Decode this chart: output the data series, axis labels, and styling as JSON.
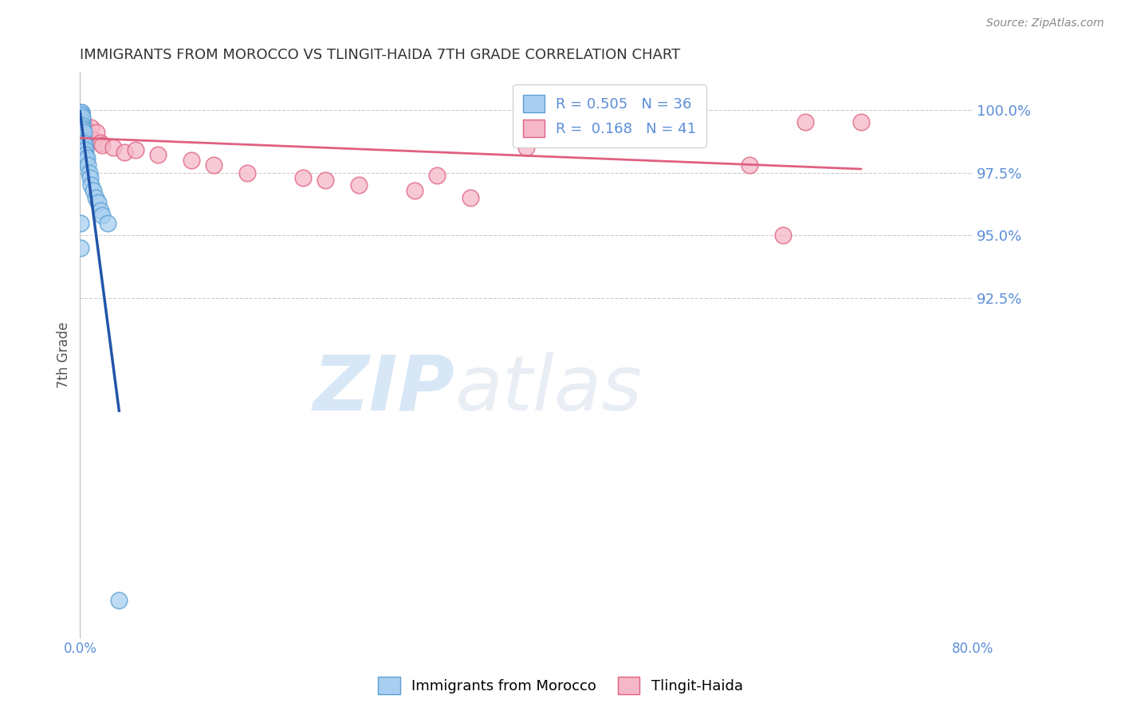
{
  "title": "IMMIGRANTS FROM MOROCCO VS TLINGIT-HAIDA 7TH GRADE CORRELATION CHART",
  "source": "Source: ZipAtlas.com",
  "ylabel": "7th Grade",
  "y_ticks": [
    92.5,
    95.0,
    97.5,
    100.0
  ],
  "y_tick_labels": [
    "92.5%",
    "95.0%",
    "97.5%",
    "100.0%"
  ],
  "x_min": 0.0,
  "x_max": 80.0,
  "y_min": 79.0,
  "y_max": 101.5,
  "series_blue": {
    "color": "#a8cff0",
    "edge_color": "#5a9fd4",
    "line_color": "#2255aa",
    "label": "R = 0.505   N = 36",
    "x": [
      0.05,
      0.08,
      0.1,
      0.1,
      0.12,
      0.15,
      0.15,
      0.15,
      0.18,
      0.2,
      0.2,
      0.22,
      0.25,
      0.25,
      0.28,
      0.3,
      0.3,
      0.35,
      0.35,
      0.38,
      0.4,
      0.45,
      0.5,
      0.55,
      0.6,
      0.7,
      0.8,
      0.9,
      1.0,
      1.2,
      1.4,
      1.6,
      1.8,
      2.0,
      2.5,
      3.5
    ],
    "y": [
      94.5,
      95.5,
      99.8,
      99.9,
      99.7,
      99.9,
      99.8,
      99.6,
      99.5,
      99.7,
      99.4,
      99.3,
      99.2,
      99.0,
      98.9,
      98.8,
      99.1,
      98.7,
      98.5,
      98.6,
      98.3,
      98.4,
      98.2,
      98.0,
      98.1,
      97.8,
      97.5,
      97.3,
      97.0,
      96.8,
      96.5,
      96.3,
      96.0,
      95.8,
      95.5,
      80.5
    ]
  },
  "series_pink": {
    "color": "#f5b8c8",
    "edge_color": "#e06080",
    "line_color": "#e06080",
    "label": "R =  0.168   N = 41",
    "x": [
      0.05,
      0.08,
      0.1,
      0.12,
      0.15,
      0.18,
      0.2,
      0.25,
      0.28,
      0.3,
      0.35,
      0.4,
      0.5,
      0.6,
      0.8,
      1.0,
      1.2,
      1.5,
      1.8,
      2.0,
      3.0,
      4.0,
      5.0,
      7.0,
      10.0,
      12.0,
      15.0,
      20.0,
      22.0,
      25.0,
      30.0,
      32.0,
      35.0,
      40.0,
      45.0,
      50.0,
      55.0,
      60.0,
      63.0,
      65.0,
      70.0
    ],
    "y": [
      99.5,
      99.3,
      99.6,
      99.7,
      99.8,
      99.4,
      99.6,
      99.5,
      99.3,
      99.2,
      99.1,
      99.4,
      99.2,
      99.0,
      99.0,
      99.3,
      98.8,
      99.1,
      98.7,
      98.6,
      98.5,
      98.3,
      98.4,
      98.2,
      98.0,
      97.8,
      97.5,
      97.3,
      97.2,
      97.0,
      96.8,
      97.4,
      96.5,
      98.5,
      99.5,
      99.0,
      99.2,
      97.8,
      95.0,
      99.5,
      99.5
    ]
  },
  "watermark_zip": "ZIP",
  "watermark_atlas": "atlas",
  "background_color": "#ffffff",
  "grid_color": "#cccccc",
  "tick_color": "#5b8dd9",
  "title_color": "#333333"
}
